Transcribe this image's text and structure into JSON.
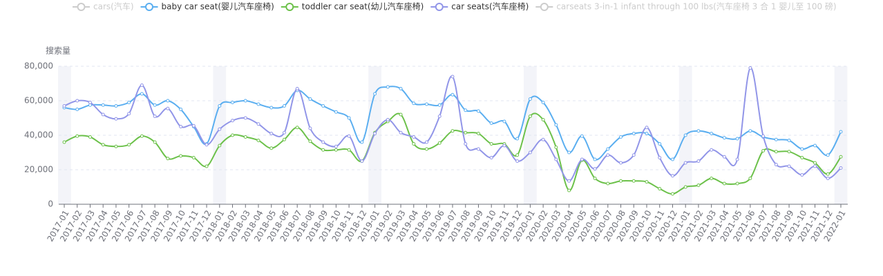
{
  "chart_data": {
    "type": "line",
    "y_axis_label": "搜索量",
    "categories": [
      "2017-01",
      "2017-02",
      "2017-03",
      "2017-04",
      "2017-05",
      "2017-06",
      "2017-07",
      "2017-08",
      "2017-09",
      "2017-10",
      "2017-11",
      "2017-12",
      "2018-01",
      "2018-02",
      "2018-03",
      "2018-04",
      "2018-05",
      "2018-06",
      "2018-07",
      "2018-08",
      "2018-09",
      "2018-10",
      "2018-11",
      "2018-12",
      "2019-01",
      "2019-02",
      "2019-03",
      "2019-04",
      "2019-05",
      "2019-06",
      "2019-07",
      "2019-08",
      "2019-09",
      "2019-10",
      "2019-11",
      "2019-12",
      "2020-01",
      "2020-02",
      "2020-03",
      "2020-04",
      "2020-05",
      "2020-06",
      "2020-07",
      "2020-08",
      "2020-09",
      "2020-10",
      "2020-11",
      "2020-12",
      "2021-01",
      "2021-02",
      "2021-03",
      "2021-04",
      "2021-05",
      "2021-06",
      "2021-07",
      "2021-08",
      "2021-09",
      "2021-10",
      "2021-11",
      "2021-12",
      "2022-01"
    ],
    "series": [
      {
        "name": "cars(汽车)",
        "color": "#cccccc",
        "visible": false
      },
      {
        "name": "baby car seat(婴儿汽车座椅)",
        "color": "#5aaef0",
        "visible": true,
        "values": [
          56000,
          55000,
          57500,
          57500,
          57000,
          59000,
          64000,
          57500,
          60000,
          55000,
          45000,
          35000,
          57000,
          59000,
          60000,
          58000,
          56000,
          57000,
          66000,
          61000,
          57000,
          53500,
          50000,
          36000,
          64000,
          68000,
          67000,
          58500,
          58000,
          57500,
          63500,
          54500,
          54000,
          47000,
          48000,
          38000,
          61000,
          59000,
          46000,
          30000,
          39500,
          26000,
          32000,
          39000,
          41000,
          41000,
          35000,
          26000,
          40000,
          42500,
          41000,
          38500,
          38000,
          42500,
          39000,
          37500,
          37000,
          32000,
          34000,
          28500,
          42000
        ]
      },
      {
        "name": "toddler car seat(幼儿汽车座椅)",
        "color": "#6cc14a",
        "visible": true,
        "values": [
          36000,
          39500,
          39000,
          34500,
          33500,
          34500,
          39500,
          36000,
          26500,
          28000,
          27000,
          22000,
          34000,
          40000,
          39000,
          37000,
          32500,
          37500,
          44500,
          36500,
          31500,
          31500,
          31500,
          25000,
          41500,
          48000,
          52000,
          35000,
          32000,
          35500,
          42500,
          41500,
          41000,
          35000,
          35000,
          28500,
          51000,
          49000,
          33000,
          8000,
          25500,
          15000,
          12000,
          13500,
          13500,
          13000,
          9000,
          6000,
          10000,
          11000,
          15000,
          12000,
          12000,
          15000,
          31000,
          30500,
          30500,
          27000,
          24000,
          17500,
          27500
        ]
      },
      {
        "name": "car seats(汽车座椅)",
        "color": "#9195e8",
        "visible": true,
        "values": [
          57000,
          60000,
          59000,
          52000,
          49500,
          52500,
          69000,
          51000,
          55500,
          45000,
          45500,
          34500,
          43500,
          48500,
          50000,
          46500,
          41000,
          41500,
          67000,
          44000,
          36000,
          33500,
          39500,
          25000,
          41000,
          49000,
          41500,
          39000,
          36000,
          51000,
          74000,
          35000,
          32000,
          27000,
          34000,
          25000,
          30000,
          37500,
          26000,
          13500,
          26000,
          20500,
          28500,
          24000,
          28500,
          44500,
          27000,
          16500,
          24000,
          25000,
          31500,
          27500,
          26000,
          79000,
          39500,
          23000,
          22000,
          17000,
          22000,
          15000,
          21000
        ]
      },
      {
        "name": "carseats 3-in-1 infant through 100 lbs(汽车座椅 3 合 1 婴儿至 100 磅)",
        "color": "#cccccc",
        "visible": false
      }
    ],
    "ylim": [
      0,
      80000
    ],
    "yticks": [
      0,
      {
        "value": 20000,
        "label": "20,000"
      },
      {
        "value": 40000,
        "label": "40,000"
      },
      {
        "value": 60000,
        "label": "60,000"
      },
      {
        "value": 80000,
        "label": "80,000"
      }
    ],
    "grid": true
  }
}
